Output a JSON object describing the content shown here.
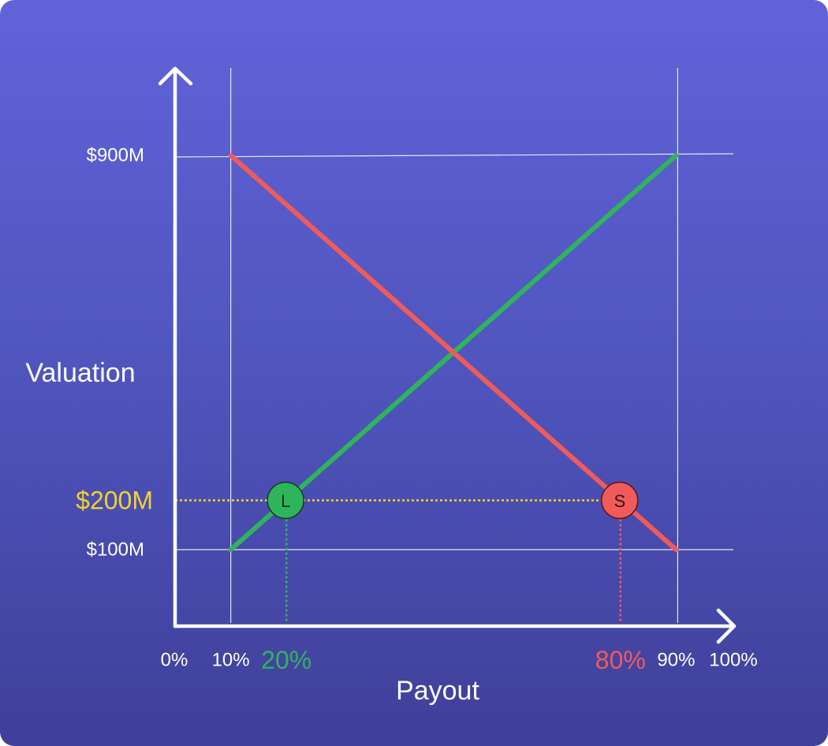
{
  "chart_data": {
    "type": "line",
    "xlabel": "Payout",
    "ylabel": "Valuation",
    "x_ticks": [
      {
        "value": 0,
        "label": "0%"
      },
      {
        "value": 10,
        "label": "10%"
      },
      {
        "value": 90,
        "label": "90%"
      },
      {
        "value": 100,
        "label": "100%"
      }
    ],
    "y_ticks": [
      {
        "value": 100,
        "label": "$100M"
      },
      {
        "value": 900,
        "label": "$900M"
      }
    ],
    "series": [
      {
        "name": "",
        "color": "#2eb55b",
        "points": [
          [
            10,
            100
          ],
          [
            90,
            900
          ]
        ]
      },
      {
        "name": "",
        "color": "#ef5b5b",
        "points": [
          [
            10,
            900
          ],
          [
            90,
            100
          ]
        ]
      }
    ],
    "highlight": {
      "valuation": 200,
      "valuation_label": "$200M",
      "valuation_color": "#f2d230",
      "markers": [
        {
          "letter": "L",
          "payout": 20,
          "payout_label": "20%",
          "color": "#2eb55b"
        },
        {
          "letter": "S",
          "payout": 80,
          "payout_label": "80%",
          "color": "#ef5b5b"
        }
      ]
    }
  }
}
